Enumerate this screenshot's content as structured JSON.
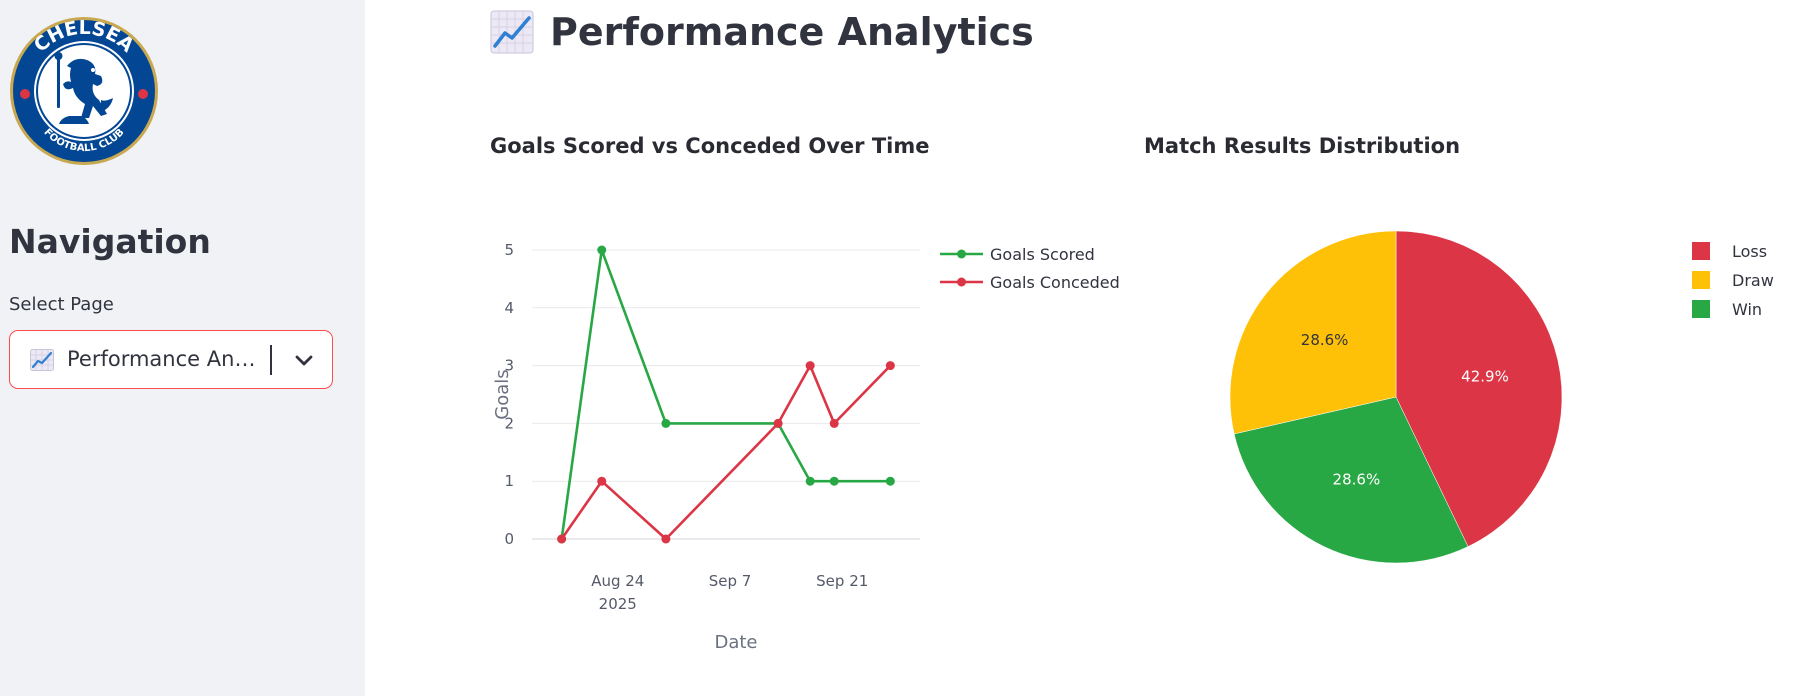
{
  "sidebar": {
    "logo_text": {
      "top": "CHELSEA",
      "bottom": "FOOTBALL CLUB"
    },
    "navigation_title": "Navigation",
    "select_label": "Select Page",
    "selected_page": "Performance Analytics",
    "selected_page_icon": "chart-increasing-icon",
    "dropdown_icon": "chevron-down-icon"
  },
  "main": {
    "title": "Performance Analytics",
    "title_icon": "chart-increasing-icon"
  },
  "colors": {
    "green": "#28a745",
    "red": "#dc3545",
    "yellow": "#ffc107",
    "accent": "#ff4b4b",
    "sidebar_bg": "#f0f2f6"
  },
  "chart_data": [
    {
      "type": "line",
      "title": "Goals Scored vs Conceded Over Time",
      "xlabel": "Date",
      "ylabel": "Goals",
      "x": [
        "2025-08-17",
        "2025-08-22",
        "2025-08-30",
        "2025-09-13",
        "2025-09-17",
        "2025-09-20",
        "2025-09-27"
      ],
      "series": [
        {
          "name": "Goals Scored",
          "values": [
            0,
            5,
            2,
            2,
            1,
            1,
            1
          ],
          "color": "#28a745"
        },
        {
          "name": "Goals Conceded",
          "values": [
            0,
            1,
            0,
            2,
            3,
            2,
            3
          ],
          "color": "#dc3545"
        }
      ],
      "xticks": [
        {
          "date": "2025-08-24",
          "label": "Aug 24",
          "sublabel": "2025"
        },
        {
          "date": "2025-09-07",
          "label": "Sep 7",
          "sublabel": ""
        },
        {
          "date": "2025-09-21",
          "label": "Sep 21",
          "sublabel": ""
        }
      ],
      "yticks": [
        "0",
        "1",
        "2",
        "3",
        "4",
        "5"
      ],
      "ylim": [
        0,
        5
      ],
      "grid": true,
      "legend_position": "top-right"
    },
    {
      "type": "pie",
      "title": "Match Results Distribution",
      "slices": [
        {
          "name": "Loss",
          "value": 42.9,
          "label": "42.9%",
          "color": "#dc3545",
          "label_color": "#ffffff"
        },
        {
          "name": "Win",
          "value": 28.6,
          "label": "28.6%",
          "color": "#28a745",
          "label_color": "#ffffff"
        },
        {
          "name": "Draw",
          "value": 28.6,
          "label": "28.6%",
          "color": "#ffc107",
          "label_color": "#31333f"
        }
      ],
      "legend": [
        "Loss",
        "Draw",
        "Win"
      ],
      "legend_position": "right"
    }
  ]
}
